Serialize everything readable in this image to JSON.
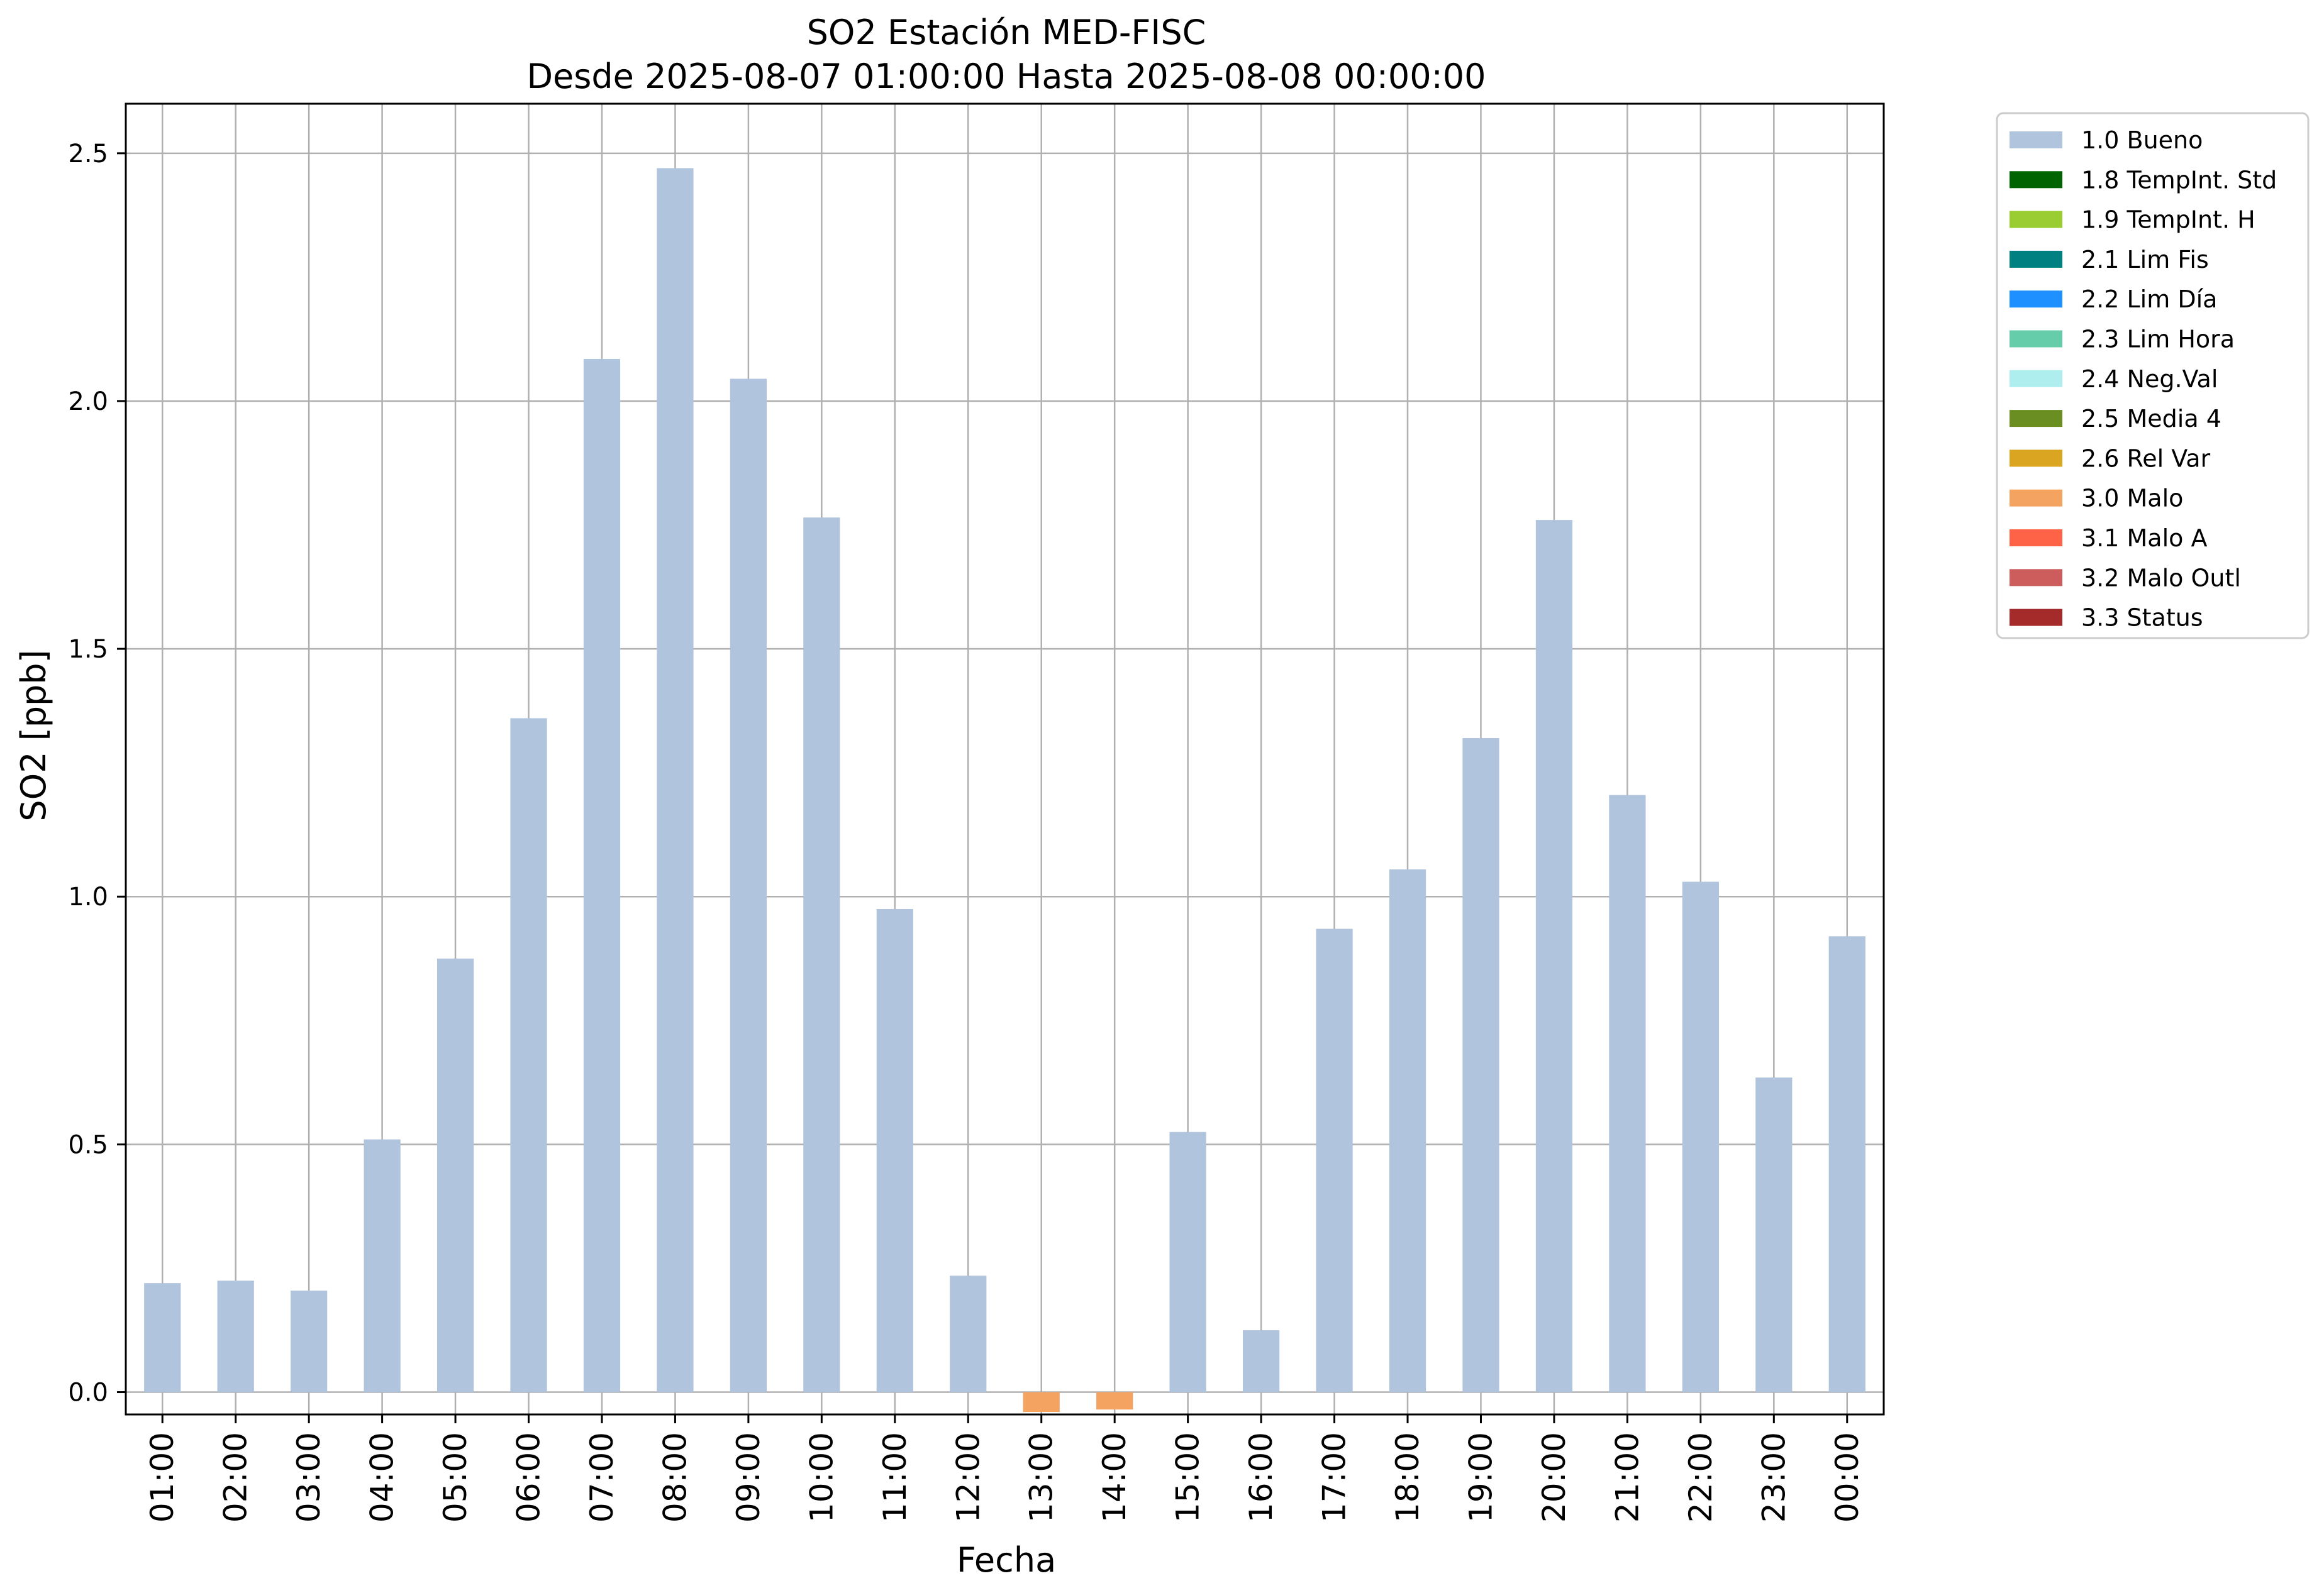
{
  "chart_data": {
    "type": "bar",
    "title": "SO2 Estación MED-FISC",
    "subtitle": "Desde 2025-08-07 01:00:00 Hasta 2025-08-08 00:00:00",
    "xlabel": "Fecha",
    "ylabel": "SO2 [ppb]",
    "ylim": [
      -0.045,
      2.6
    ],
    "yticks": [
      "0.0",
      "0.5",
      "1.0",
      "1.5",
      "2.0",
      "2.5"
    ],
    "grid": true,
    "legend_position": "outside-top-right",
    "categories": [
      "01:00",
      "02:00",
      "03:00",
      "04:00",
      "05:00",
      "06:00",
      "07:00",
      "08:00",
      "09:00",
      "10:00",
      "11:00",
      "12:00",
      "13:00",
      "14:00",
      "15:00",
      "16:00",
      "17:00",
      "18:00",
      "19:00",
      "20:00",
      "21:00",
      "22:00",
      "23:00",
      "00:00"
    ],
    "values": [
      0.22,
      0.225,
      0.205,
      0.51,
      0.875,
      1.36,
      2.085,
      2.47,
      2.045,
      1.765,
      0.975,
      0.235,
      -0.04,
      -0.035,
      0.525,
      0.125,
      0.935,
      1.055,
      1.32,
      1.76,
      1.205,
      1.03,
      0.635,
      0.92
    ],
    "flags": [
      "1.0 Bueno",
      "1.0 Bueno",
      "1.0 Bueno",
      "1.0 Bueno",
      "1.0 Bueno",
      "1.0 Bueno",
      "1.0 Bueno",
      "1.0 Bueno",
      "1.0 Bueno",
      "1.0 Bueno",
      "1.0 Bueno",
      "1.0 Bueno",
      "3.0 Malo",
      "3.0 Malo",
      "1.0 Bueno",
      "1.0 Bueno",
      "1.0 Bueno",
      "1.0 Bueno",
      "1.0 Bueno",
      "1.0 Bueno",
      "1.0 Bueno",
      "1.0 Bueno",
      "1.0 Bueno",
      "1.0 Bueno"
    ],
    "legend": [
      {
        "label": "1.0 Bueno",
        "color": "#b0c4de"
      },
      {
        "label": "1.8 TempInt. Std",
        "color": "#006400"
      },
      {
        "label": "1.9 TempInt. H",
        "color": "#9acd32"
      },
      {
        "label": "2.1 Lim Fis",
        "color": "#008080"
      },
      {
        "label": "2.2 Lim Día",
        "color": "#1e90ff"
      },
      {
        "label": "2.3 Lim Hora",
        "color": "#66cdaa"
      },
      {
        "label": "2.4 Neg.Val",
        "color": "#afeeee"
      },
      {
        "label": "2.5 Media 4",
        "color": "#6b8e23"
      },
      {
        "label": "2.6 Rel Var",
        "color": "#daa520"
      },
      {
        "label": "3.0 Malo",
        "color": "#f4a460"
      },
      {
        "label": "3.1 Malo A",
        "color": "#ff6347"
      },
      {
        "label": "3.2 Malo Outl",
        "color": "#cd5c5c"
      },
      {
        "label": "3.3 Status",
        "color": "#a52a2a"
      }
    ]
  }
}
